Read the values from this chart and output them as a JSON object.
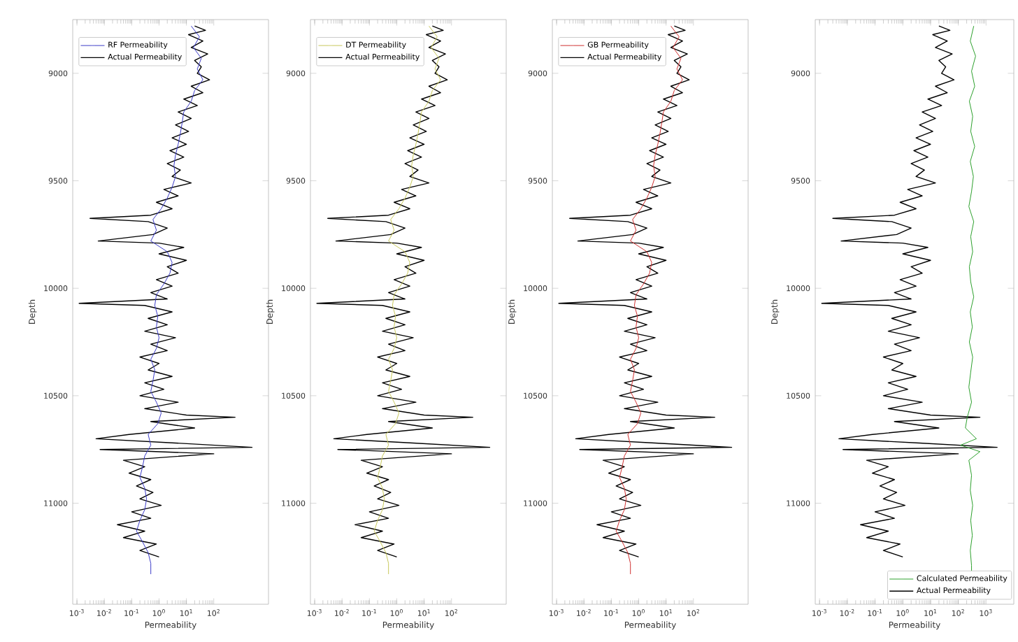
{
  "chart_data": [
    {
      "type": "line",
      "xlabel": "Permeability",
      "ylabel": "Depth",
      "log": "x",
      "legend": "top left",
      "xlim": [
        0.0007,
        10000
      ],
      "xticks": [
        {
          "value": 0.001,
          "label": "10$^{-3}$"
        },
        {
          "value": 0.01,
          "label": "10$^{-2}$"
        },
        {
          "value": 0.1,
          "label": "10$^{-1}$"
        },
        {
          "value": 1,
          "label": "10$^{0}$"
        },
        {
          "value": 10,
          "label": "10$^{1}$"
        },
        {
          "value": 100,
          "label": "10$^{2}$"
        }
      ],
      "ylim": [
        11470,
        8750
      ],
      "yticks": [
        9000,
        9500,
        10000,
        10500,
        11000
      ],
      "series": [
        {
          "name": "RF Permeability",
          "color": "#3b3bc8",
          "x": [
            15,
            30,
            18,
            35,
            25,
            40,
            20,
            15,
            8,
            7,
            6,
            5,
            4,
            3.5,
            4,
            3,
            2,
            1.2,
            0.6,
            0.8,
            0.5,
            2,
            3,
            2.5,
            1.5,
            0.8,
            0.7,
            0.9,
            0.8,
            1,
            0.8,
            0.5,
            0.7,
            0.6,
            0.5,
            0.8,
            1.2,
            0.9,
            0.4,
            0.5,
            0.3,
            0.25,
            0.2,
            0.3,
            0.35,
            0.3,
            0.2,
            0.15,
            0.25,
            0.4,
            0.5,
            0.5
          ],
          "values": [
            8780,
            8830,
            8880,
            8930,
            8980,
            9030,
            9080,
            9130,
            9180,
            9230,
            9280,
            9330,
            9380,
            9430,
            9480,
            9530,
            9580,
            9630,
            9680,
            9730,
            9780,
            9830,
            9880,
            9930,
            9980,
            10030,
            10080,
            10130,
            10180,
            10230,
            10280,
            10330,
            10380,
            10430,
            10480,
            10530,
            10580,
            10630,
            10680,
            10730,
            10780,
            10830,
            10880,
            10930,
            10980,
            11030,
            11080,
            11130,
            11180,
            11230,
            11280,
            11330
          ]
        },
        {
          "name": "Actual Permeability",
          "color": "#000000",
          "x": [
            20,
            50,
            12,
            40,
            15,
            60,
            20,
            35,
            25,
            70,
            15,
            40,
            8,
            25,
            5,
            15,
            4,
            12,
            3,
            10,
            2.5,
            8,
            2,
            6,
            3,
            15,
            1.5,
            5,
            0.8,
            3,
            0.5,
            0.003,
            0.4,
            2,
            0.6,
            0.006,
            1,
            8,
            1,
            10,
            2,
            5,
            0.8,
            3,
            0.5,
            2,
            0.0012,
            0.3,
            3,
            0.4,
            2,
            0.3,
            4,
            0.5,
            2,
            0.2,
            1,
            0.4,
            3,
            0.3,
            1.5,
            0.2,
            5,
            0.3,
            10,
            600,
            0.5,
            20,
            0.08,
            0.005,
            4,
            2500,
            0.007,
            100,
            0.05,
            0.3,
            0.08,
            0.5,
            0.15,
            0.6,
            0.2,
            1.2,
            0.1,
            0.5,
            0.03,
            0.3,
            0.05,
            0.8,
            0.2,
            1
          ],
          "values": [
            8780,
            8800,
            8820,
            8850,
            8880,
            8910,
            8940,
            8970,
            9000,
            9030,
            9060,
            9090,
            9120,
            9150,
            9180,
            9210,
            9240,
            9270,
            9300,
            9330,
            9360,
            9390,
            9420,
            9450,
            9480,
            9510,
            9540,
            9570,
            9600,
            9630,
            9660,
            9675,
            9690,
            9720,
            9750,
            9780,
            9790,
            9810,
            9840,
            9870,
            9900,
            9930,
            9960,
            9990,
            10020,
            10050,
            10070,
            10080,
            10110,
            10140,
            10170,
            10200,
            10230,
            10260,
            10290,
            10320,
            10350,
            10380,
            10410,
            10440,
            10470,
            10500,
            10530,
            10560,
            10590,
            10600,
            10620,
            10650,
            10680,
            10700,
            10720,
            10740,
            10750,
            10770,
            10800,
            10830,
            10860,
            10890,
            10920,
            10950,
            10980,
            11010,
            11040,
            11070,
            11100,
            11130,
            11160,
            11190,
            11220,
            11250
          ]
        }
      ]
    },
    {
      "type": "line",
      "xlabel": "Permeability",
      "ylabel": "Depth",
      "log": "x",
      "legend": "top left",
      "xlim": [
        0.0007,
        10000
      ],
      "xticks": [
        {
          "value": 0.001,
          "label": "10$^{-3}$"
        },
        {
          "value": 0.01,
          "label": "10$^{-2}$"
        },
        {
          "value": 0.1,
          "label": "10$^{-1}$"
        },
        {
          "value": 1,
          "label": "10$^{0}$"
        },
        {
          "value": 10,
          "label": "10$^{1}$"
        },
        {
          "value": 100,
          "label": "10$^{2}$"
        }
      ],
      "ylim": [
        11470,
        8750
      ],
      "yticks": [
        9000,
        9500,
        10000,
        10500,
        11000
      ],
      "series": [
        {
          "name": "DT Permeability",
          "color": "#c8c85a",
          "x": [
            15,
            30,
            18,
            35,
            25,
            40,
            20,
            15,
            8,
            7,
            6,
            5,
            4,
            3.5,
            4,
            3,
            2,
            1.2,
            0.6,
            0.8,
            0.5,
            2,
            3,
            2.5,
            1.5,
            0.8,
            0.7,
            0.9,
            0.8,
            1,
            0.8,
            0.5,
            0.7,
            0.6,
            0.5,
            0.8,
            1.2,
            0.9,
            0.4,
            0.5,
            0.3,
            0.25,
            0.2,
            0.3,
            0.35,
            0.3,
            0.2,
            0.15,
            0.25,
            0.4,
            0.5,
            0.5
          ],
          "values": [
            8780,
            8830,
            8880,
            8930,
            8980,
            9030,
            9080,
            9130,
            9180,
            9230,
            9280,
            9330,
            9380,
            9430,
            9480,
            9530,
            9580,
            9630,
            9680,
            9730,
            9780,
            9830,
            9880,
            9930,
            9980,
            10030,
            10080,
            10130,
            10180,
            10230,
            10280,
            10330,
            10380,
            10430,
            10480,
            10530,
            10580,
            10630,
            10680,
            10730,
            10780,
            10830,
            10880,
            10930,
            10980,
            11030,
            11080,
            11130,
            11180,
            11230,
            11280,
            11330
          ]
        },
        {
          "name": "Actual Permeability",
          "color": "#000000",
          "x": [
            20,
            50,
            12,
            40,
            15,
            60,
            20,
            35,
            25,
            70,
            15,
            40,
            8,
            25,
            5,
            15,
            4,
            12,
            3,
            10,
            2.5,
            8,
            2,
            6,
            3,
            15,
            1.5,
            5,
            0.8,
            3,
            0.5,
            0.003,
            0.4,
            2,
            0.6,
            0.006,
            1,
            8,
            1,
            10,
            2,
            5,
            0.8,
            3,
            0.5,
            2,
            0.0012,
            0.3,
            3,
            0.4,
            2,
            0.3,
            4,
            0.5,
            2,
            0.2,
            1,
            0.4,
            3,
            0.3,
            1.5,
            0.2,
            5,
            0.3,
            10,
            600,
            0.5,
            20,
            0.08,
            0.005,
            4,
            2500,
            0.007,
            100,
            0.05,
            0.3,
            0.08,
            0.5,
            0.15,
            0.6,
            0.2,
            1.2,
            0.1,
            0.5,
            0.03,
            0.3,
            0.05,
            0.8,
            0.2,
            1
          ],
          "values": [
            8780,
            8800,
            8820,
            8850,
            8880,
            8910,
            8940,
            8970,
            9000,
            9030,
            9060,
            9090,
            9120,
            9150,
            9180,
            9210,
            9240,
            9270,
            9300,
            9330,
            9360,
            9390,
            9420,
            9450,
            9480,
            9510,
            9540,
            9570,
            9600,
            9630,
            9660,
            9675,
            9690,
            9720,
            9750,
            9780,
            9790,
            9810,
            9840,
            9870,
            9900,
            9930,
            9960,
            9990,
            10020,
            10050,
            10070,
            10080,
            10110,
            10140,
            10170,
            10200,
            10230,
            10260,
            10290,
            10320,
            10350,
            10380,
            10410,
            10440,
            10470,
            10500,
            10530,
            10560,
            10590,
            10600,
            10620,
            10650,
            10680,
            10700,
            10720,
            10740,
            10750,
            10770,
            10800,
            10830,
            10860,
            10890,
            10920,
            10950,
            10980,
            11010,
            11040,
            11070,
            11100,
            11130,
            11160,
            11190,
            11220,
            11250
          ]
        }
      ]
    },
    {
      "type": "line",
      "xlabel": "Permeability",
      "ylabel": "Depth",
      "log": "x",
      "legend": "top left",
      "xlim": [
        0.0007,
        10000
      ],
      "xticks": [
        {
          "value": 0.001,
          "label": "10$^{-3}$"
        },
        {
          "value": 0.01,
          "label": "10$^{-2}$"
        },
        {
          "value": 0.1,
          "label": "10$^{-1}$"
        },
        {
          "value": 1,
          "label": "10$^{0}$"
        },
        {
          "value": 10,
          "label": "10$^{1}$"
        },
        {
          "value": 100,
          "label": "10$^{2}$"
        }
      ],
      "ylim": [
        11470,
        8750
      ],
      "yticks": [
        9000,
        9500,
        10000,
        10500,
        11000
      ],
      "series": [
        {
          "name": "GB Permeability",
          "color": "#d03030",
          "x": [
            15,
            30,
            18,
            35,
            25,
            40,
            20,
            15,
            8,
            7,
            6,
            5,
            4,
            3.5,
            4,
            3,
            2,
            1.2,
            0.6,
            0.8,
            0.5,
            2,
            3,
            2.5,
            1.5,
            0.8,
            0.7,
            0.9,
            0.8,
            1,
            0.8,
            0.5,
            0.7,
            0.6,
            0.5,
            0.8,
            1.2,
            0.9,
            0.4,
            0.5,
            0.3,
            0.25,
            0.2,
            0.3,
            0.35,
            0.3,
            0.2,
            0.15,
            0.25,
            0.4,
            0.5,
            0.5
          ],
          "values": [
            8780,
            8830,
            8880,
            8930,
            8980,
            9030,
            9080,
            9130,
            9180,
            9230,
            9280,
            9330,
            9380,
            9430,
            9480,
            9530,
            9580,
            9630,
            9680,
            9730,
            9780,
            9830,
            9880,
            9930,
            9980,
            10030,
            10080,
            10130,
            10180,
            10230,
            10280,
            10330,
            10380,
            10430,
            10480,
            10530,
            10580,
            10630,
            10680,
            10730,
            10780,
            10830,
            10880,
            10930,
            10980,
            11030,
            11080,
            11130,
            11180,
            11230,
            11280,
            11330
          ]
        },
        {
          "name": "Actual Permeability",
          "color": "#000000",
          "x": [
            20,
            50,
            12,
            40,
            15,
            60,
            20,
            35,
            25,
            70,
            15,
            40,
            8,
            25,
            5,
            15,
            4,
            12,
            3,
            10,
            2.5,
            8,
            2,
            6,
            3,
            15,
            1.5,
            5,
            0.8,
            3,
            0.5,
            0.003,
            0.4,
            2,
            0.6,
            0.006,
            1,
            8,
            1,
            10,
            2,
            5,
            0.8,
            3,
            0.5,
            2,
            0.0012,
            0.3,
            3,
            0.4,
            2,
            0.3,
            4,
            0.5,
            2,
            0.2,
            1,
            0.4,
            3,
            0.3,
            1.5,
            0.2,
            5,
            0.3,
            10,
            600,
            0.5,
            20,
            0.08,
            0.005,
            4,
            2500,
            0.007,
            100,
            0.05,
            0.3,
            0.08,
            0.5,
            0.15,
            0.6,
            0.2,
            1.2,
            0.1,
            0.5,
            0.03,
            0.3,
            0.05,
            0.8,
            0.2,
            1
          ],
          "values": [
            8780,
            8800,
            8820,
            8850,
            8880,
            8910,
            8940,
            8970,
            9000,
            9030,
            9060,
            9090,
            9120,
            9150,
            9180,
            9210,
            9240,
            9270,
            9300,
            9330,
            9360,
            9390,
            9420,
            9450,
            9480,
            9510,
            9540,
            9570,
            9600,
            9630,
            9660,
            9675,
            9690,
            9720,
            9750,
            9780,
            9790,
            9810,
            9840,
            9870,
            9900,
            9930,
            9960,
            9990,
            10020,
            10050,
            10070,
            10080,
            10110,
            10140,
            10170,
            10200,
            10230,
            10260,
            10290,
            10320,
            10350,
            10380,
            10410,
            10440,
            10470,
            10500,
            10530,
            10560,
            10590,
            10600,
            10620,
            10650,
            10680,
            10700,
            10720,
            10740,
            10750,
            10770,
            10800,
            10830,
            10860,
            10890,
            10920,
            10950,
            10980,
            11010,
            11040,
            11070,
            11100,
            11130,
            11160,
            11190,
            11220,
            11250
          ]
        }
      ]
    },
    {
      "type": "line",
      "xlabel": "Permeability",
      "ylabel": "Depth",
      "log": "x",
      "legend": "bottom right",
      "xlim": [
        0.0007,
        10000
      ],
      "xticks": [
        {
          "value": 0.001,
          "label": "10$^{-3}$"
        },
        {
          "value": 0.01,
          "label": "10$^{-2}$"
        },
        {
          "value": 0.1,
          "label": "10$^{-1}$"
        },
        {
          "value": 1,
          "label": "10$^{0}$"
        },
        {
          "value": 10,
          "label": "10$^{1}$"
        },
        {
          "value": 100,
          "label": "10$^{2}$"
        },
        {
          "value": 1000,
          "label": "10$^{3}$"
        }
      ],
      "ylim": [
        11470,
        8750
      ],
      "yticks": [
        9000,
        9500,
        10000,
        10500,
        11000
      ],
      "series": [
        {
          "name": "Calculated Permeability",
          "color": "#2ca02c",
          "x": [
            360,
            270,
            420,
            300,
            390,
            250,
            330,
            280,
            390,
            270,
            350,
            300,
            240,
            360,
            280,
            330,
            250,
            280,
            360,
            270,
            320,
            250,
            330,
            280,
            240,
            300,
            210,
            180,
            450,
            120,
            600,
            240,
            300,
            270,
            330,
            280,
            320,
            270,
            300,
            300
          ],
          "values": [
            8780,
            8850,
            8920,
            8990,
            9060,
            9130,
            9200,
            9270,
            9340,
            9410,
            9480,
            9550,
            9620,
            9690,
            9760,
            9830,
            9900,
            9970,
            10040,
            10110,
            10180,
            10250,
            10320,
            10390,
            10460,
            10530,
            10600,
            10650,
            10700,
            10730,
            10760,
            10800,
            10870,
            10940,
            11010,
            11080,
            11150,
            11220,
            11290,
            11320
          ]
        },
        {
          "name": "Actual Permeability",
          "color": "#000000",
          "x": [
            20,
            50,
            12,
            40,
            15,
            60,
            20,
            35,
            25,
            70,
            15,
            40,
            8,
            25,
            5,
            15,
            4,
            12,
            3,
            10,
            2.5,
            8,
            2,
            6,
            3,
            15,
            1.5,
            5,
            0.8,
            3,
            0.5,
            0.003,
            0.4,
            2,
            0.6,
            0.006,
            1,
            8,
            1,
            10,
            2,
            5,
            0.8,
            3,
            0.5,
            2,
            0.0012,
            0.3,
            3,
            0.4,
            2,
            0.3,
            4,
            0.5,
            2,
            0.2,
            1,
            0.4,
            3,
            0.3,
            1.5,
            0.2,
            5,
            0.3,
            10,
            600,
            0.5,
            20,
            0.08,
            0.005,
            4,
            2500,
            0.007,
            100,
            0.05,
            0.3,
            0.08,
            0.5,
            0.15,
            0.6,
            0.2,
            1.2,
            0.1,
            0.5,
            0.03,
            0.3,
            0.05,
            0.8,
            0.2,
            1
          ],
          "values": [
            8780,
            8800,
            8820,
            8850,
            8880,
            8910,
            8940,
            8970,
            9000,
            9030,
            9060,
            9090,
            9120,
            9150,
            9180,
            9210,
            9240,
            9270,
            9300,
            9330,
            9360,
            9390,
            9420,
            9450,
            9480,
            9510,
            9540,
            9570,
            9600,
            9630,
            9660,
            9675,
            9690,
            9720,
            9750,
            9780,
            9790,
            9810,
            9840,
            9870,
            9900,
            9930,
            9960,
            9990,
            10020,
            10050,
            10070,
            10080,
            10110,
            10140,
            10170,
            10200,
            10230,
            10260,
            10290,
            10320,
            10350,
            10380,
            10410,
            10440,
            10470,
            10500,
            10530,
            10560,
            10590,
            10600,
            10620,
            10650,
            10680,
            10700,
            10720,
            10740,
            10750,
            10770,
            10800,
            10830,
            10860,
            10890,
            10920,
            10950,
            10980,
            11010,
            11040,
            11070,
            11100,
            11130,
            11160,
            11190,
            11220,
            11250
          ]
        }
      ]
    }
  ]
}
